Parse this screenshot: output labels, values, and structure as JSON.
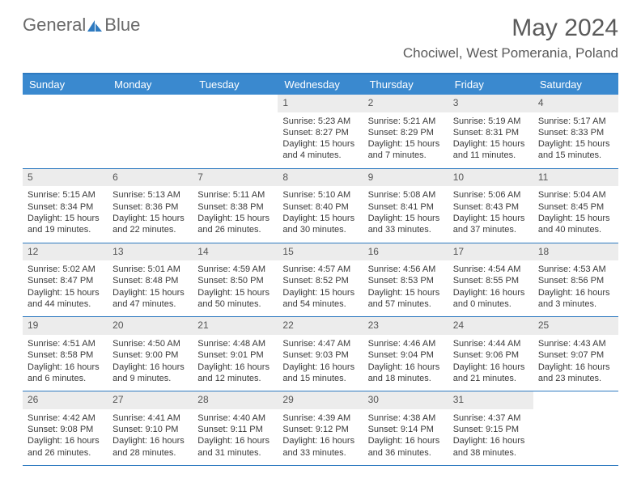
{
  "logo": {
    "text1": "General",
    "text2": "Blue"
  },
  "title": "May 2024",
  "location": "Chociwel, West Pomerania, Poland",
  "colors": {
    "header_bg": "#3a89cf",
    "header_border": "#2e7ac0",
    "daynum_bg": "#ececec",
    "text": "#3a3a3a",
    "title_text": "#5a5a5a"
  },
  "day_headers": [
    "Sunday",
    "Monday",
    "Tuesday",
    "Wednesday",
    "Thursday",
    "Friday",
    "Saturday"
  ],
  "weeks": [
    [
      {
        "empty": true
      },
      {
        "empty": true
      },
      {
        "empty": true
      },
      {
        "num": "1",
        "sunrise": "Sunrise: 5:23 AM",
        "sunset": "Sunset: 8:27 PM",
        "daylight": "Daylight: 15 hours and 4 minutes."
      },
      {
        "num": "2",
        "sunrise": "Sunrise: 5:21 AM",
        "sunset": "Sunset: 8:29 PM",
        "daylight": "Daylight: 15 hours and 7 minutes."
      },
      {
        "num": "3",
        "sunrise": "Sunrise: 5:19 AM",
        "sunset": "Sunset: 8:31 PM",
        "daylight": "Daylight: 15 hours and 11 minutes."
      },
      {
        "num": "4",
        "sunrise": "Sunrise: 5:17 AM",
        "sunset": "Sunset: 8:33 PM",
        "daylight": "Daylight: 15 hours and 15 minutes."
      }
    ],
    [
      {
        "num": "5",
        "sunrise": "Sunrise: 5:15 AM",
        "sunset": "Sunset: 8:34 PM",
        "daylight": "Daylight: 15 hours and 19 minutes."
      },
      {
        "num": "6",
        "sunrise": "Sunrise: 5:13 AM",
        "sunset": "Sunset: 8:36 PM",
        "daylight": "Daylight: 15 hours and 22 minutes."
      },
      {
        "num": "7",
        "sunrise": "Sunrise: 5:11 AM",
        "sunset": "Sunset: 8:38 PM",
        "daylight": "Daylight: 15 hours and 26 minutes."
      },
      {
        "num": "8",
        "sunrise": "Sunrise: 5:10 AM",
        "sunset": "Sunset: 8:40 PM",
        "daylight": "Daylight: 15 hours and 30 minutes."
      },
      {
        "num": "9",
        "sunrise": "Sunrise: 5:08 AM",
        "sunset": "Sunset: 8:41 PM",
        "daylight": "Daylight: 15 hours and 33 minutes."
      },
      {
        "num": "10",
        "sunrise": "Sunrise: 5:06 AM",
        "sunset": "Sunset: 8:43 PM",
        "daylight": "Daylight: 15 hours and 37 minutes."
      },
      {
        "num": "11",
        "sunrise": "Sunrise: 5:04 AM",
        "sunset": "Sunset: 8:45 PM",
        "daylight": "Daylight: 15 hours and 40 minutes."
      }
    ],
    [
      {
        "num": "12",
        "sunrise": "Sunrise: 5:02 AM",
        "sunset": "Sunset: 8:47 PM",
        "daylight": "Daylight: 15 hours and 44 minutes."
      },
      {
        "num": "13",
        "sunrise": "Sunrise: 5:01 AM",
        "sunset": "Sunset: 8:48 PM",
        "daylight": "Daylight: 15 hours and 47 minutes."
      },
      {
        "num": "14",
        "sunrise": "Sunrise: 4:59 AM",
        "sunset": "Sunset: 8:50 PM",
        "daylight": "Daylight: 15 hours and 50 minutes."
      },
      {
        "num": "15",
        "sunrise": "Sunrise: 4:57 AM",
        "sunset": "Sunset: 8:52 PM",
        "daylight": "Daylight: 15 hours and 54 minutes."
      },
      {
        "num": "16",
        "sunrise": "Sunrise: 4:56 AM",
        "sunset": "Sunset: 8:53 PM",
        "daylight": "Daylight: 15 hours and 57 minutes."
      },
      {
        "num": "17",
        "sunrise": "Sunrise: 4:54 AM",
        "sunset": "Sunset: 8:55 PM",
        "daylight": "Daylight: 16 hours and 0 minutes."
      },
      {
        "num": "18",
        "sunrise": "Sunrise: 4:53 AM",
        "sunset": "Sunset: 8:56 PM",
        "daylight": "Daylight: 16 hours and 3 minutes."
      }
    ],
    [
      {
        "num": "19",
        "sunrise": "Sunrise: 4:51 AM",
        "sunset": "Sunset: 8:58 PM",
        "daylight": "Daylight: 16 hours and 6 minutes."
      },
      {
        "num": "20",
        "sunrise": "Sunrise: 4:50 AM",
        "sunset": "Sunset: 9:00 PM",
        "daylight": "Daylight: 16 hours and 9 minutes."
      },
      {
        "num": "21",
        "sunrise": "Sunrise: 4:48 AM",
        "sunset": "Sunset: 9:01 PM",
        "daylight": "Daylight: 16 hours and 12 minutes."
      },
      {
        "num": "22",
        "sunrise": "Sunrise: 4:47 AM",
        "sunset": "Sunset: 9:03 PM",
        "daylight": "Daylight: 16 hours and 15 minutes."
      },
      {
        "num": "23",
        "sunrise": "Sunrise: 4:46 AM",
        "sunset": "Sunset: 9:04 PM",
        "daylight": "Daylight: 16 hours and 18 minutes."
      },
      {
        "num": "24",
        "sunrise": "Sunrise: 4:44 AM",
        "sunset": "Sunset: 9:06 PM",
        "daylight": "Daylight: 16 hours and 21 minutes."
      },
      {
        "num": "25",
        "sunrise": "Sunrise: 4:43 AM",
        "sunset": "Sunset: 9:07 PM",
        "daylight": "Daylight: 16 hours and 23 minutes."
      }
    ],
    [
      {
        "num": "26",
        "sunrise": "Sunrise: 4:42 AM",
        "sunset": "Sunset: 9:08 PM",
        "daylight": "Daylight: 16 hours and 26 minutes."
      },
      {
        "num": "27",
        "sunrise": "Sunrise: 4:41 AM",
        "sunset": "Sunset: 9:10 PM",
        "daylight": "Daylight: 16 hours and 28 minutes."
      },
      {
        "num": "28",
        "sunrise": "Sunrise: 4:40 AM",
        "sunset": "Sunset: 9:11 PM",
        "daylight": "Daylight: 16 hours and 31 minutes."
      },
      {
        "num": "29",
        "sunrise": "Sunrise: 4:39 AM",
        "sunset": "Sunset: 9:12 PM",
        "daylight": "Daylight: 16 hours and 33 minutes."
      },
      {
        "num": "30",
        "sunrise": "Sunrise: 4:38 AM",
        "sunset": "Sunset: 9:14 PM",
        "daylight": "Daylight: 16 hours and 36 minutes."
      },
      {
        "num": "31",
        "sunrise": "Sunrise: 4:37 AM",
        "sunset": "Sunset: 9:15 PM",
        "daylight": "Daylight: 16 hours and 38 minutes."
      },
      {
        "empty": true
      }
    ]
  ]
}
